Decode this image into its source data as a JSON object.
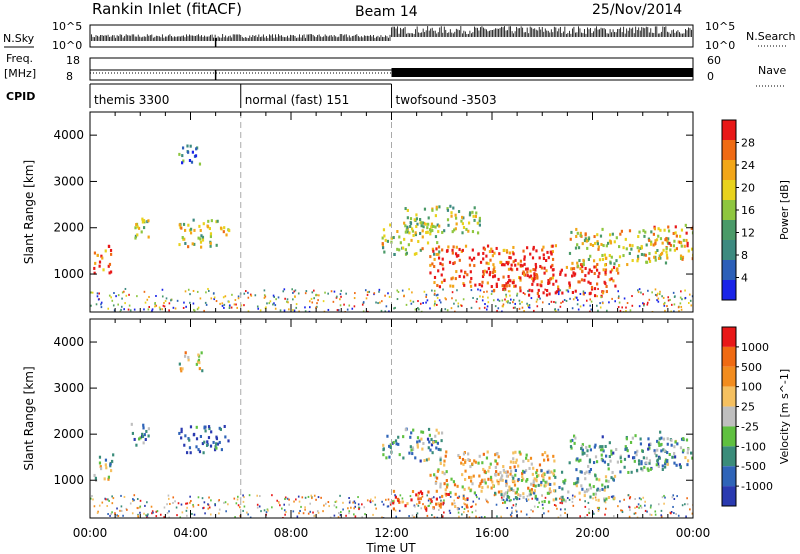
{
  "header": {
    "station": "Rankin Inlet (fitACF)",
    "beam": "Beam 14",
    "date": "25/Nov/2014"
  },
  "left_labels": {
    "nsky": "N.Sky",
    "freq_line1": "Freq.",
    "freq_line2": "[MHz]",
    "cpid": "CPID"
  },
  "right_labels": {
    "nsearch": "N.Search",
    "nave": "Nave"
  },
  "chart_data": {
    "type": "heatmap",
    "xlabel": "Time UT",
    "x_ticks": [
      "00:00",
      "04:00",
      "08:00",
      "12:00",
      "16:00",
      "20:00",
      "00:00"
    ],
    "x_range_hours": [
      0,
      24
    ],
    "noise_panel": {
      "left_ticks": [
        "10^5",
        "10^0"
      ],
      "right_ticks": [
        "10^5",
        "10^0"
      ]
    },
    "freq_panel": {
      "left_ticks": [
        "18",
        "8"
      ],
      "right_ticks": [
        "60",
        "0"
      ]
    },
    "cpid_segments": [
      {
        "label": "themis 3300",
        "start_h": 0,
        "end_h": 6
      },
      {
        "label": "normal (fast) 151",
        "start_h": 6,
        "end_h": 12
      },
      {
        "label": "twofsound -3503",
        "start_h": 12,
        "end_h": 24
      }
    ],
    "mode_change_hours": [
      6,
      12
    ],
    "panels": [
      {
        "name": "Power",
        "ylabel": "Slant Range [km]",
        "y_ticks": [
          "1000",
          "2000",
          "3000",
          "4000"
        ],
        "ylim": [
          180,
          4500
        ],
        "colorbar_label": "Power [dB]",
        "colorbar_ticks": [
          "4",
          "8",
          "12",
          "16",
          "20",
          "24",
          "28"
        ],
        "colors": [
          "#1a24e8",
          "#2c5fb8",
          "#3d8a80",
          "#4a9a68",
          "#8ec63f",
          "#e8d21c",
          "#f2a618",
          "#ef6b14",
          "#e81818"
        ],
        "blobs": [
          {
            "t": 0.5,
            "r": 1350,
            "dt": 0.4,
            "dr": 300,
            "v": 0.8
          },
          {
            "t": 2.0,
            "r": 2000,
            "dt": 0.4,
            "dr": 250,
            "v": 0.55
          },
          {
            "t": 4.5,
            "r": 1900,
            "dt": 1.0,
            "dr": 300,
            "v": 0.55
          },
          {
            "t": 4.0,
            "r": 3600,
            "dt": 0.5,
            "dr": 200,
            "v": 0.3
          },
          {
            "t": 12.8,
            "r": 1800,
            "dt": 1.2,
            "dr": 350,
            "v": 0.55
          },
          {
            "t": 16.0,
            "r": 1200,
            "dt": 2.5,
            "dr": 450,
            "v": 0.9
          },
          {
            "t": 18.5,
            "r": 900,
            "dt": 2.5,
            "dr": 350,
            "v": 0.95
          },
          {
            "t": 21.0,
            "r": 1600,
            "dt": 2.0,
            "dr": 400,
            "v": 0.6
          },
          {
            "t": 14.0,
            "r": 2200,
            "dt": 1.5,
            "dr": 300,
            "v": 0.5
          },
          {
            "t": 23.2,
            "r": 1700,
            "dt": 0.8,
            "dr": 400,
            "v": 0.7
          }
        ]
      },
      {
        "name": "Velocity",
        "ylabel": "Slant Range [km]",
        "y_ticks": [
          "1000",
          "2000",
          "3000",
          "4000"
        ],
        "ylim": [
          180,
          4500
        ],
        "colorbar_label": "Velocity [m s^-1]",
        "colorbar_ticks": [
          "1000",
          "500",
          "100",
          "25",
          "-25",
          "-100",
          "-500",
          "-1000"
        ],
        "colors": [
          "#2a3ab0",
          "#2f64b8",
          "#3a8c7a",
          "#5fc040",
          "#bfbfbf",
          "#f5c060",
          "#f28c1e",
          "#ef6a12",
          "#e81818"
        ],
        "blobs": [
          {
            "t": 0.5,
            "r": 1300,
            "dt": 0.4,
            "dr": 300,
            "v": 0.45
          },
          {
            "t": 2.0,
            "r": 2000,
            "dt": 0.4,
            "dr": 250,
            "v": 0.25
          },
          {
            "t": 4.5,
            "r": 1900,
            "dt": 1.0,
            "dr": 300,
            "v": 0.1
          },
          {
            "t": 4.0,
            "r": 3600,
            "dt": 0.5,
            "dr": 200,
            "v": 0.55
          },
          {
            "t": 12.8,
            "r": 1800,
            "dt": 1.2,
            "dr": 350,
            "v": 0.35
          },
          {
            "t": 16.0,
            "r": 1200,
            "dt": 2.5,
            "dr": 450,
            "v": 0.6
          },
          {
            "t": 18.5,
            "r": 900,
            "dt": 2.5,
            "dr": 350,
            "v": 0.4
          },
          {
            "t": 21.0,
            "r": 1600,
            "dt": 2.0,
            "dr": 400,
            "v": 0.3
          },
          {
            "t": 13.5,
            "r": 600,
            "dt": 1.5,
            "dr": 200,
            "v": 0.8
          },
          {
            "t": 23.2,
            "r": 1700,
            "dt": 0.8,
            "dr": 400,
            "v": 0.35
          }
        ]
      }
    ]
  }
}
